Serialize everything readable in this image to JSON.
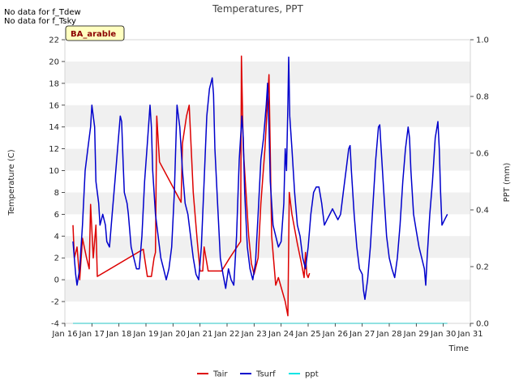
{
  "notes": [
    "No data for f_Tdew",
    "No data for f_Tsky"
  ],
  "badge": "BA_arable",
  "chart_data": {
    "type": "line",
    "title": "Temperatures, PPT",
    "xlabel": "Time",
    "ylabel": "Temperature (C)",
    "y2label": "PPT (mm)",
    "xlim": [
      16,
      31
    ],
    "ylim": [
      -4,
      22
    ],
    "y2lim": [
      0.0,
      1.0
    ],
    "x_ticks": [
      16,
      17,
      18,
      19,
      20,
      21,
      22,
      23,
      24,
      25,
      26,
      27,
      28,
      29,
      30,
      31
    ],
    "x_tick_labels": [
      "Jan 16",
      "Jan 17",
      "Jan 18",
      "Jan 19",
      "Jan 20",
      "Jan 21",
      "Jan 22",
      "Jan 23",
      "Jan 24",
      "Jan 25",
      "Jan 26",
      "Jan 27",
      "Jan 28",
      "Jan 29",
      "Jan 30",
      "Jan 31"
    ],
    "y_ticks": [
      -4,
      -2,
      0,
      2,
      4,
      6,
      8,
      10,
      12,
      14,
      16,
      18,
      20,
      22
    ],
    "y_tick_labels": [
      "-4",
      "-2",
      "0",
      "2",
      "4",
      "6",
      "8",
      "10",
      "12",
      "14",
      "16",
      "18",
      "20",
      "22"
    ],
    "y2_ticks": [
      0.0,
      0.2,
      0.4,
      0.6,
      0.8,
      1.0
    ],
    "y2_tick_labels": [
      "0.0",
      "0.2",
      "0.4",
      "0.6",
      "0.8",
      "1.0"
    ],
    "grid": "horizontal bands",
    "legend_position": "bottom-center",
    "series": [
      {
        "name": "Tair",
        "color": "#dd0000",
        "axis": "left",
        "points": [
          [
            16.3,
            5.0
          ],
          [
            16.35,
            2.0
          ],
          [
            16.45,
            3.0
          ],
          [
            16.55,
            0.0
          ],
          [
            16.65,
            3.8
          ],
          [
            16.8,
            2.0
          ],
          [
            16.9,
            1.0
          ],
          [
            16.95,
            6.9
          ],
          [
            17.05,
            2.0
          ],
          [
            17.15,
            5.0
          ],
          [
            17.2,
            0.3
          ],
          [
            18.9,
            2.8
          ],
          [
            19.05,
            0.3
          ],
          [
            19.2,
            0.3
          ],
          [
            19.3,
            2.0
          ],
          [
            19.35,
            2.5
          ],
          [
            19.4,
            15.0
          ],
          [
            19.5,
            10.8
          ],
          [
            20.3,
            7.1
          ],
          [
            20.35,
            12.5
          ],
          [
            20.5,
            15.0
          ],
          [
            20.6,
            16.0
          ],
          [
            20.75,
            8.0
          ],
          [
            20.9,
            3.5
          ],
          [
            21.0,
            0.8
          ],
          [
            21.1,
            0.8
          ],
          [
            21.15,
            3.0
          ],
          [
            21.3,
            0.8
          ],
          [
            21.6,
            0.8
          ],
          [
            21.8,
            0.8
          ],
          [
            22.1,
            2.0
          ],
          [
            22.5,
            3.5
          ],
          [
            22.53,
            20.5
          ],
          [
            22.6,
            12.0
          ],
          [
            22.8,
            4.0
          ],
          [
            22.9,
            1.5
          ],
          [
            23.0,
            0.5
          ],
          [
            23.15,
            2.0
          ],
          [
            23.25,
            7.0
          ],
          [
            23.4,
            12.0
          ],
          [
            23.55,
            18.8
          ],
          [
            23.65,
            4.0
          ],
          [
            23.8,
            -0.5
          ],
          [
            23.9,
            0.2
          ],
          [
            24.15,
            -2.0
          ],
          [
            24.25,
            -3.3
          ],
          [
            24.3,
            8.0
          ],
          [
            24.4,
            6.0
          ],
          [
            24.6,
            3.3
          ],
          [
            24.75,
            1.5
          ],
          [
            24.85,
            0.2
          ],
          [
            24.9,
            2.5
          ],
          [
            24.95,
            0.5
          ],
          [
            25.0,
            0.2
          ],
          [
            25.05,
            0.6
          ]
        ]
      },
      {
        "name": "Tsurf",
        "color": "#0000cc",
        "axis": "left",
        "points": [
          [
            16.3,
            3.5
          ],
          [
            16.4,
            0.5
          ],
          [
            16.45,
            -0.5
          ],
          [
            16.55,
            1.0
          ],
          [
            16.65,
            5.0
          ],
          [
            16.75,
            10.0
          ],
          [
            16.85,
            12.0
          ],
          [
            16.95,
            14.0
          ],
          [
            17.0,
            16.0
          ],
          [
            17.1,
            14.0
          ],
          [
            17.15,
            9.0
          ],
          [
            17.25,
            7.0
          ],
          [
            17.3,
            5.0
          ],
          [
            17.4,
            6.0
          ],
          [
            17.5,
            5.0
          ],
          [
            17.55,
            3.5
          ],
          [
            17.65,
            3.0
          ],
          [
            17.75,
            6.0
          ],
          [
            17.85,
            9.0
          ],
          [
            17.95,
            12.0
          ],
          [
            18.05,
            15.0
          ],
          [
            18.1,
            14.5
          ],
          [
            18.15,
            11.0
          ],
          [
            18.2,
            8.0
          ],
          [
            18.3,
            7.0
          ],
          [
            18.35,
            6.0
          ],
          [
            18.45,
            3.0
          ],
          [
            18.55,
            2.0
          ],
          [
            18.65,
            1.0
          ],
          [
            18.75,
            1.0
          ],
          [
            18.85,
            4.0
          ],
          [
            18.95,
            9.0
          ],
          [
            19.05,
            12.5
          ],
          [
            19.15,
            16.0
          ],
          [
            19.2,
            14.0
          ],
          [
            19.25,
            10.0
          ],
          [
            19.35,
            6.0
          ],
          [
            19.45,
            4.0
          ],
          [
            19.55,
            2.0
          ],
          [
            19.65,
            1.0
          ],
          [
            19.75,
            0.0
          ],
          [
            19.85,
            1.0
          ],
          [
            19.95,
            3.0
          ],
          [
            20.05,
            8.0
          ],
          [
            20.15,
            16.0
          ],
          [
            20.25,
            14.0
          ],
          [
            20.35,
            10.0
          ],
          [
            20.45,
            7.0
          ],
          [
            20.55,
            6.0
          ],
          [
            20.65,
            4.0
          ],
          [
            20.75,
            2.0
          ],
          [
            20.85,
            0.5
          ],
          [
            20.95,
            0.0
          ],
          [
            21.05,
            3.0
          ],
          [
            21.15,
            9.0
          ],
          [
            21.25,
            15.0
          ],
          [
            21.35,
            17.5
          ],
          [
            21.45,
            18.5
          ],
          [
            21.5,
            17.0
          ],
          [
            21.55,
            12.0
          ],
          [
            21.65,
            7.0
          ],
          [
            21.75,
            2.0
          ],
          [
            21.85,
            0.5
          ],
          [
            21.95,
            -0.8
          ],
          [
            22.05,
            1.0
          ],
          [
            22.15,
            0.0
          ],
          [
            22.25,
            -0.5
          ],
          [
            22.35,
            4.0
          ],
          [
            22.45,
            11.0
          ],
          [
            22.55,
            15.0
          ],
          [
            22.6,
            13.0
          ],
          [
            22.65,
            8.0
          ],
          [
            22.75,
            3.0
          ],
          [
            22.85,
            1.0
          ],
          [
            22.95,
            0.0
          ],
          [
            23.05,
            1.5
          ],
          [
            23.15,
            6.0
          ],
          [
            23.25,
            11.0
          ],
          [
            23.35,
            13.0
          ],
          [
            23.45,
            16.0
          ],
          [
            23.5,
            18.0
          ],
          [
            23.55,
            14.0
          ],
          [
            23.6,
            9.0
          ],
          [
            23.7,
            5.0
          ],
          [
            23.8,
            4.0
          ],
          [
            23.9,
            3.0
          ],
          [
            24.0,
            3.5
          ],
          [
            24.1,
            7.0
          ],
          [
            24.15,
            12.0
          ],
          [
            24.2,
            10.0
          ],
          [
            24.25,
            16.0
          ],
          [
            24.28,
            20.4
          ],
          [
            24.32,
            15.0
          ],
          [
            24.4,
            12.0
          ],
          [
            24.5,
            8.0
          ],
          [
            24.6,
            5.0
          ],
          [
            24.7,
            4.0
          ],
          [
            24.8,
            2.0
          ],
          [
            24.9,
            1.0
          ],
          [
            25.0,
            3.0
          ],
          [
            25.1,
            6.0
          ],
          [
            25.2,
            8.0
          ],
          [
            25.3,
            8.5
          ],
          [
            25.4,
            8.5
          ],
          [
            25.5,
            7.0
          ],
          [
            25.6,
            5.0
          ],
          [
            25.7,
            5.5
          ],
          [
            25.8,
            6.0
          ],
          [
            25.9,
            6.5
          ],
          [
            26.0,
            6.0
          ],
          [
            26.1,
            5.5
          ],
          [
            26.2,
            6.0
          ],
          [
            26.3,
            8.0
          ],
          [
            26.4,
            10.0
          ],
          [
            26.5,
            12.0
          ],
          [
            26.55,
            12.3
          ],
          [
            26.6,
            10.0
          ],
          [
            26.7,
            6.0
          ],
          [
            26.8,
            3.0
          ],
          [
            26.9,
            1.0
          ],
          [
            27.0,
            0.5
          ],
          [
            27.05,
            -1.0
          ],
          [
            27.1,
            -1.8
          ],
          [
            27.2,
            0.0
          ],
          [
            27.3,
            3.0
          ],
          [
            27.4,
            7.0
          ],
          [
            27.5,
            11.0
          ],
          [
            27.6,
            14.0
          ],
          [
            27.65,
            14.2
          ],
          [
            27.7,
            12.0
          ],
          [
            27.8,
            8.0
          ],
          [
            27.9,
            4.0
          ],
          [
            28.0,
            2.0
          ],
          [
            28.1,
            1.0
          ],
          [
            28.2,
            0.2
          ],
          [
            28.3,
            2.0
          ],
          [
            28.4,
            5.0
          ],
          [
            28.5,
            9.0
          ],
          [
            28.6,
            12.0
          ],
          [
            28.7,
            14.0
          ],
          [
            28.75,
            13.0
          ],
          [
            28.8,
            10.0
          ],
          [
            28.9,
            6.0
          ],
          [
            29.0,
            4.5
          ],
          [
            29.1,
            3.0
          ],
          [
            29.2,
            2.0
          ],
          [
            29.3,
            1.0
          ],
          [
            29.35,
            -0.5
          ],
          [
            29.4,
            2.0
          ],
          [
            29.5,
            6.0
          ],
          [
            29.6,
            9.0
          ],
          [
            29.7,
            13.0
          ],
          [
            29.8,
            14.5
          ],
          [
            29.85,
            12.0
          ],
          [
            29.9,
            8.0
          ],
          [
            29.95,
            5.0
          ],
          [
            30.05,
            5.5
          ],
          [
            30.15,
            6.0
          ]
        ]
      },
      {
        "name": "ppt",
        "color": "#00e5e5",
        "axis": "right",
        "points": [
          [
            16.3,
            0.0
          ],
          [
            30.15,
            0.0
          ]
        ]
      }
    ]
  }
}
